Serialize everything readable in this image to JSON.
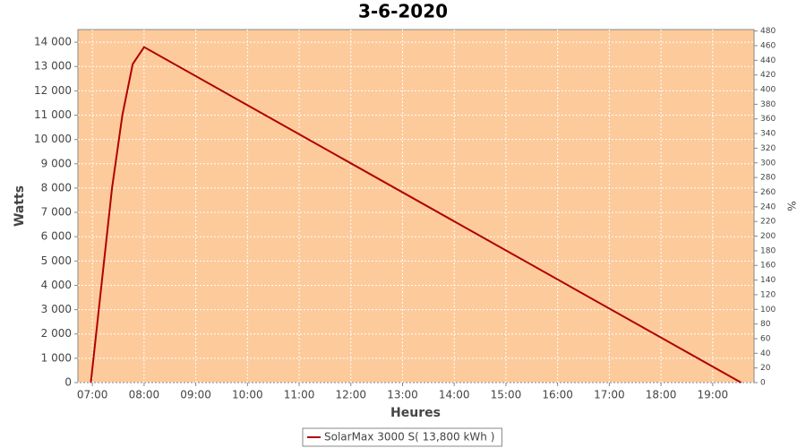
{
  "chart_data": {
    "type": "line",
    "title": "3-6-2020",
    "x_label": "Heures",
    "y_label": "Watts",
    "y2_label": "%",
    "x": [
      6.97,
      7.38,
      7.58,
      7.78,
      8.0,
      19.55
    ],
    "series": [
      {
        "name": "SolarMax 3000 S( 13,800 kWh )",
        "color": "#b00000",
        "values": [
          0,
          8000,
          11000,
          13100,
          13800,
          0
        ]
      }
    ],
    "xlim": [
      6.72,
      19.8
    ],
    "xticks": [
      {
        "value": 7,
        "label": "07:00"
      },
      {
        "value": 8,
        "label": "08:00"
      },
      {
        "value": 9,
        "label": "09:00"
      },
      {
        "value": 10,
        "label": "10:00"
      },
      {
        "value": 11,
        "label": "11:00"
      },
      {
        "value": 12,
        "label": "12:00"
      },
      {
        "value": 13,
        "label": "13:00"
      },
      {
        "value": 14,
        "label": "14:00"
      },
      {
        "value": 15,
        "label": "15:00"
      },
      {
        "value": 16,
        "label": "16:00"
      },
      {
        "value": 17,
        "label": "17:00"
      },
      {
        "value": 18,
        "label": "18:00"
      },
      {
        "value": 19,
        "label": "19:00"
      }
    ],
    "ylim": [
      0,
      14520
    ],
    "yticks": [
      0,
      {
        "value": 1000,
        "label": "1 000"
      },
      {
        "value": 2000,
        "label": "2 000"
      },
      {
        "value": 3000,
        "label": "3 000"
      },
      {
        "value": 4000,
        "label": "4 000"
      },
      {
        "value": 5000,
        "label": "5 000"
      },
      {
        "value": 6000,
        "label": "6 000"
      },
      {
        "value": 7000,
        "label": "7 000"
      },
      {
        "value": 8000,
        "label": "8 000"
      },
      {
        "value": 9000,
        "label": "9 000"
      },
      {
        "value": 10000,
        "label": "10 000"
      },
      {
        "value": 11000,
        "label": "11 000"
      },
      {
        "value": 12000,
        "label": "12 000"
      },
      {
        "value": 13000,
        "label": "13 000"
      },
      {
        "value": 14000,
        "label": "14 000"
      }
    ],
    "y2lim": [
      0,
      482
    ],
    "y2ticks": [
      0,
      20,
      40,
      60,
      80,
      100,
      120,
      140,
      160,
      180,
      200,
      220,
      240,
      260,
      280,
      300,
      320,
      340,
      360,
      380,
      400,
      420,
      440,
      460,
      480
    ],
    "grid": true,
    "plot_background": "#fdca9b"
  }
}
